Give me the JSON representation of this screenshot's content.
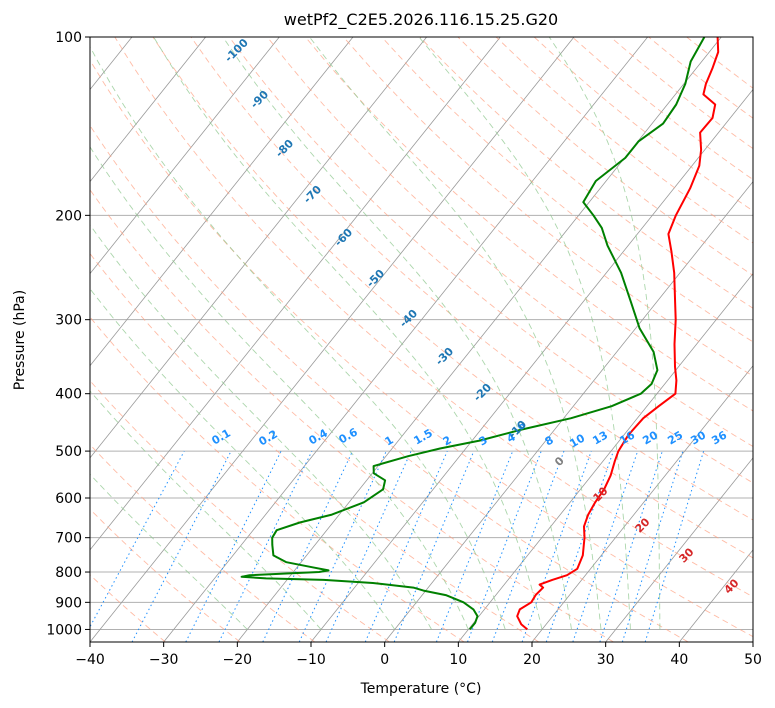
{
  "chart_data": {
    "type": "line",
    "title": "wetPf2_C2E5.2026.116.15.25.G20",
    "xlabel": "Temperature (°C)",
    "ylabel": "Pressure (hPa)",
    "xlim": [
      -40,
      50
    ],
    "ylim": [
      1050,
      100
    ],
    "y_scale": "log",
    "x_ticks": [
      -40,
      -30,
      -20,
      -10,
      0,
      10,
      20,
      30,
      40,
      50
    ],
    "x_tick_labels": [
      "−40",
      "−30",
      "−20",
      "−10",
      "0",
      "10",
      "20",
      "30",
      "40",
      "50"
    ],
    "y_ticks": [
      1000,
      900,
      800,
      700,
      600,
      500,
      400,
      300,
      200,
      100
    ],
    "y_tick_labels": [
      "1000",
      "900",
      "800",
      "700",
      "600",
      "500",
      "400",
      "300",
      "200",
      "100"
    ],
    "grid": true,
    "skew": true,
    "series": [
      {
        "color": "#ff0000",
        "points": [
          [
            1000,
            18.0
          ],
          [
            980,
            16.6
          ],
          [
            950,
            15.2
          ],
          [
            925,
            14.8
          ],
          [
            900,
            15.6
          ],
          [
            875,
            15.4
          ],
          [
            850,
            15.6
          ],
          [
            840,
            14.8
          ],
          [
            825,
            16.0
          ],
          [
            810,
            17.5
          ],
          [
            790,
            18.2
          ],
          [
            750,
            17.5
          ],
          [
            700,
            15.8
          ],
          [
            670,
            14.5
          ],
          [
            640,
            13.8
          ],
          [
            610,
            13.4
          ],
          [
            580,
            13.2
          ],
          [
            550,
            12.6
          ],
          [
            520,
            11.6
          ],
          [
            500,
            11.0
          ],
          [
            470,
            10.6
          ],
          [
            440,
            10.8
          ],
          [
            420,
            11.6
          ],
          [
            400,
            12.5
          ],
          [
            380,
            11.2
          ],
          [
            360,
            9.5
          ],
          [
            330,
            7.0
          ],
          [
            300,
            4.5
          ],
          [
            280,
            2.5
          ],
          [
            250,
            -0.8
          ],
          [
            230,
            -3.5
          ],
          [
            215,
            -5.8
          ],
          [
            200,
            -6.8
          ],
          [
            180,
            -7.8
          ],
          [
            165,
            -9.0
          ],
          [
            155,
            -10.5
          ],
          [
            145,
            -12.5
          ],
          [
            137,
            -12.4
          ],
          [
            130,
            -13.5
          ],
          [
            125,
            -16.2
          ],
          [
            120,
            -17.0
          ],
          [
            113,
            -17.8
          ],
          [
            106,
            -18.8
          ],
          [
            100,
            -20.5
          ]
        ]
      },
      {
        "color": "#008000",
        "points": [
          [
            1000,
            10.2
          ],
          [
            975,
            10.2
          ],
          [
            950,
            9.8
          ],
          [
            925,
            8.5
          ],
          [
            900,
            6.4
          ],
          [
            875,
            3.2
          ],
          [
            860,
            -0.3
          ],
          [
            850,
            -2.0
          ],
          [
            835,
            -8.0
          ],
          [
            825,
            -15.0
          ],
          [
            820,
            -23.0
          ],
          [
            815,
            -26.5
          ],
          [
            810,
            -25.6
          ],
          [
            800,
            -16.5
          ],
          [
            795,
            -15.4
          ],
          [
            785,
            -18.0
          ],
          [
            770,
            -22.0
          ],
          [
            750,
            -24.5
          ],
          [
            720,
            -25.8
          ],
          [
            700,
            -26.6
          ],
          [
            680,
            -26.8
          ],
          [
            660,
            -24.5
          ],
          [
            640,
            -21.0
          ],
          [
            610,
            -18.0
          ],
          [
            580,
            -16.8
          ],
          [
            560,
            -17.5
          ],
          [
            545,
            -19.8
          ],
          [
            530,
            -20.6
          ],
          [
            510,
            -17.0
          ],
          [
            495,
            -13.5
          ],
          [
            480,
            -9.0
          ],
          [
            460,
            -4.5
          ],
          [
            440,
            1.0
          ],
          [
            420,
            5.2
          ],
          [
            400,
            7.8
          ],
          [
            385,
            8.2
          ],
          [
            365,
            7.5
          ],
          [
            340,
            5.0
          ],
          [
            310,
            0.5
          ],
          [
            280,
            -3.5
          ],
          [
            250,
            -8.0
          ],
          [
            225,
            -12.8
          ],
          [
            210,
            -15.5
          ],
          [
            200,
            -18.0
          ],
          [
            190,
            -20.8
          ],
          [
            175,
            -21.4
          ],
          [
            160,
            -19.9
          ],
          [
            150,
            -19.9
          ],
          [
            140,
            -18.5
          ],
          [
            130,
            -18.8
          ],
          [
            120,
            -19.8
          ],
          [
            110,
            -21.5
          ],
          [
            100,
            -22.3
          ]
        ]
      }
    ],
    "isotherms_c": [
      -100,
      -90,
      -80,
      -70,
      -60,
      -50,
      -40,
      -30,
      -20,
      -10,
      0,
      10,
      20,
      30,
      40,
      50
    ],
    "dry_adiabat_labels": [
      {
        "text": "-100",
        "color": "#1f77b4"
      },
      {
        "text": "-90",
        "color": "#1f77b4"
      },
      {
        "text": "-80",
        "color": "#1f77b4"
      },
      {
        "text": "-70",
        "color": "#1f77b4"
      },
      {
        "text": "-60",
        "color": "#1f77b4"
      },
      {
        "text": "-50",
        "color": "#1f77b4"
      },
      {
        "text": "-40",
        "color": "#1f77b4"
      },
      {
        "text": "-30",
        "color": "#1f77b4"
      },
      {
        "text": "-20",
        "color": "#1f77b4"
      },
      {
        "text": "-10",
        "color": "#1f77b4"
      },
      {
        "text": "0",
        "color": "#808080"
      },
      {
        "text": "10",
        "color": "#d62728"
      },
      {
        "text": "20",
        "color": "#d62728"
      },
      {
        "text": "30",
        "color": "#d62728"
      },
      {
        "text": "40",
        "color": "#d62728"
      }
    ],
    "mixing_ratio_labels": [
      "0.1",
      "0.2",
      "0.4",
      "0.6",
      "1",
      "1.5",
      "2",
      "3",
      "4",
      "6",
      "8",
      "10",
      "13",
      "16",
      "20",
      "25",
      "30",
      "36"
    ],
    "mixing_ratio_color": "#1e90ff",
    "colors": {
      "temperature": "#ff0000",
      "dewpoint": "#008000",
      "isotherm": "#999999",
      "dry_adiabat": "#ff9f80",
      "moist_adiabat": "#90c890",
      "mixing_ratio": "#1e90ff"
    }
  }
}
